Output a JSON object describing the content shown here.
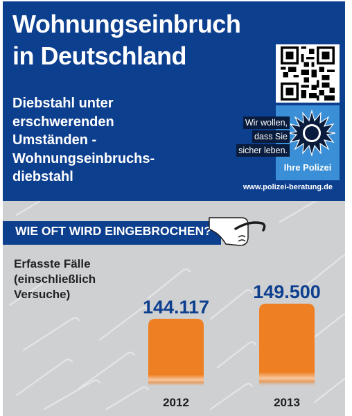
{
  "header": {
    "title_lines": [
      "Wohnungseinbruch",
      "in Deutschland"
    ],
    "subtitle_lines": [
      "Diebstahl unter",
      "erschwerenden",
      "Umständen -",
      "Wohnungseinbruchs-",
      "diebstahl"
    ],
    "slogan_lines": [
      "Wir wollen,",
      "dass Sie",
      "sicher leben."
    ],
    "logo_text": "Ihre Polizei",
    "url": "www.polizei-beratung.de"
  },
  "section": {
    "heading": "WIE OFT WIRD EINGEBROCHEN?",
    "label_lines": [
      "Erfasste Fälle",
      "(einschließlich",
      "Versuche)"
    ]
  },
  "colors": {
    "blue": "#0d3f8f",
    "orange": "#ee7f22",
    "light_blue": "#3a8fd6",
    "gray": "#cfd0d2"
  },
  "icons": [
    "qr-code-icon",
    "police-star-icon",
    "crowbar-hand-icon"
  ],
  "chart_data": {
    "type": "bar",
    "categories": [
      "2012",
      "2013"
    ],
    "values": [
      144117,
      149500
    ],
    "value_labels": [
      "144.117",
      "149.500"
    ],
    "title": "Erfasste Fälle (einschließlich Versuche)",
    "xlabel": "",
    "ylabel": "",
    "grid": false
  }
}
